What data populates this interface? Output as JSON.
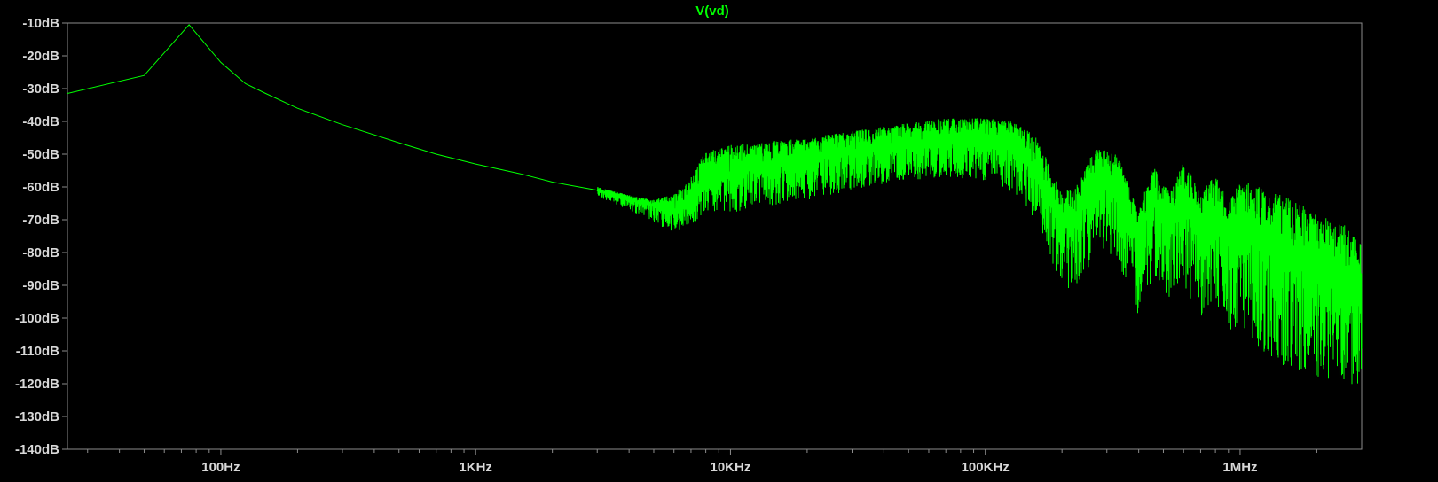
{
  "chart_data": {
    "type": "line",
    "title": "V(vd)",
    "xlabel": "",
    "ylabel": "",
    "x_scale": "log",
    "xlim_hz": [
      25,
      3000000
    ],
    "ylim_db": [
      -140,
      -10
    ],
    "grid": false,
    "y_ticks": [
      {
        "value": -10,
        "label": "-10dB"
      },
      {
        "value": -20,
        "label": "-20dB"
      },
      {
        "value": -30,
        "label": "-30dB"
      },
      {
        "value": -40,
        "label": "-40dB"
      },
      {
        "value": -50,
        "label": "-50dB"
      },
      {
        "value": -60,
        "label": "-60dB"
      },
      {
        "value": -70,
        "label": "-70dB"
      },
      {
        "value": -80,
        "label": "-80dB"
      },
      {
        "value": -90,
        "label": "-90dB"
      },
      {
        "value": -100,
        "label": "-100dB"
      },
      {
        "value": -110,
        "label": "-110dB"
      },
      {
        "value": -120,
        "label": "-120dB"
      },
      {
        "value": -130,
        "label": "-130dB"
      },
      {
        "value": -140,
        "label": "-140dB"
      }
    ],
    "x_ticks": [
      {
        "value": 100,
        "label": "100Hz"
      },
      {
        "value": 1000,
        "label": "1KHz"
      },
      {
        "value": 10000,
        "label": "10KHz"
      },
      {
        "value": 100000,
        "label": "100KHz"
      },
      {
        "value": 1000000,
        "label": "1MHz"
      }
    ],
    "series": [
      {
        "color": "#00ff00",
        "x": [
          25,
          50,
          75,
          100,
          125,
          150,
          200,
          300,
          500,
          700,
          1000,
          1500,
          2000,
          3000,
          4000,
          5000,
          6000,
          7000,
          8000,
          10000,
          15000,
          20000,
          30000,
          50000,
          70000,
          100000,
          130000,
          160000,
          200000,
          230000,
          270000,
          330000,
          400000,
          450000,
          530000,
          600000,
          700000,
          800000,
          900000,
          1000000,
          1200000,
          1500000,
          2000000,
          2500000,
          3000000
        ],
        "y_max": [
          -31.5,
          -26,
          -10.5,
          -22,
          -28.5,
          -31.5,
          -36,
          -41,
          -46.5,
          -50,
          -53,
          -56,
          -58.5,
          -60,
          -62.5,
          -64,
          -62,
          -57,
          -49,
          -47,
          -46,
          -45,
          -43,
          -40.5,
          -39,
          -39,
          -40,
          -45,
          -62,
          -59,
          -48,
          -50,
          -68,
          -53,
          -62,
          -52,
          -62,
          -56,
          -65,
          -58,
          -60,
          -63,
          -67,
          -71,
          -75
        ],
        "y_mid": [
          -31.5,
          -26,
          -10.5,
          -22,
          -28.5,
          -31.5,
          -36,
          -41,
          -46.5,
          -50,
          -53,
          -56,
          -58.5,
          -61,
          -64,
          -66,
          -68,
          -65,
          -58,
          -56,
          -54,
          -52,
          -50,
          -48,
          -47,
          -47,
          -49,
          -57,
          -72,
          -70,
          -58,
          -60,
          -78,
          -65,
          -73,
          -65,
          -74,
          -70,
          -78,
          -74,
          -78,
          -82,
          -88,
          -92,
          -96
        ],
        "y_min": [
          -31.5,
          -26,
          -10.5,
          -22,
          -28.5,
          -31.5,
          -36,
          -41,
          -46.5,
          -50,
          -53,
          -56.5,
          -59.5,
          -63,
          -67,
          -71,
          -74,
          -72,
          -68,
          -68,
          -66,
          -64,
          -61,
          -58,
          -57,
          -58,
          -62,
          -72,
          -90,
          -93,
          -80,
          -82,
          -100,
          -88,
          -95,
          -90,
          -100,
          -95,
          -105,
          -102,
          -110,
          -115,
          -118,
          -120,
          -122
        ]
      }
    ]
  }
}
